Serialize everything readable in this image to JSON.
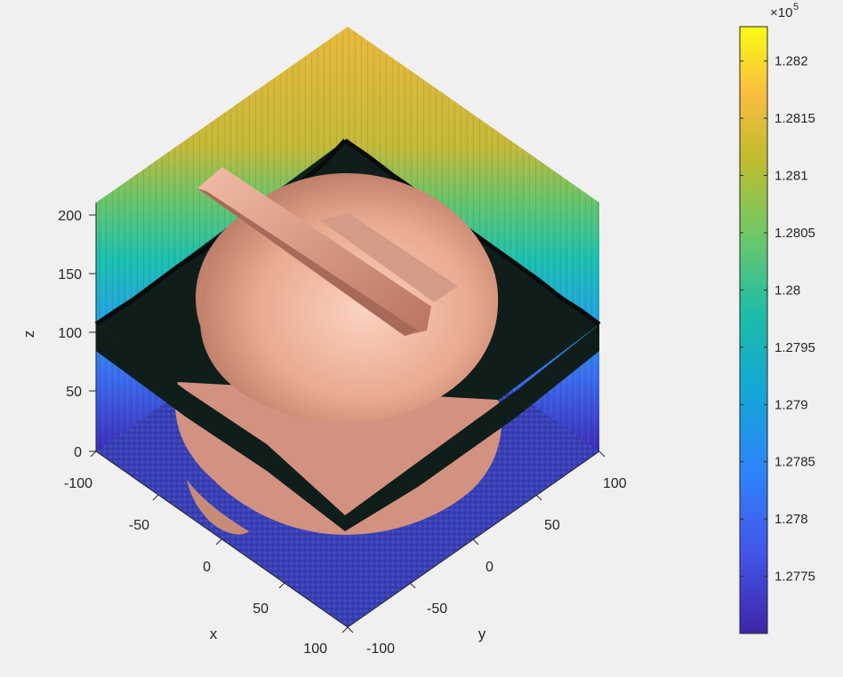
{
  "chart_data": {
    "type": "surface3d",
    "title": "",
    "xlabel": "x",
    "ylabel": "y",
    "zlabel": "z",
    "view": "isometric",
    "xlim": [
      -100,
      100
    ],
    "ylim": [
      -100,
      100
    ],
    "zlim": [
      0,
      210
    ],
    "x_ticks": [
      "-100",
      "-50",
      "0",
      "50",
      "100"
    ],
    "y_ticks": [
      "100",
      "50",
      "0",
      "-50",
      "-100"
    ],
    "z_ticks": [
      "0",
      "50",
      "100",
      "150",
      "200"
    ],
    "colorbar": {
      "colormap": "parula",
      "exponent_label": "×10",
      "exponent": "5",
      "range": [
        1.277,
        1.2823
      ],
      "ticks": [
        "1.282",
        "1.2815",
        "1.281",
        "1.2805",
        "1.28",
        "1.2795",
        "1.279",
        "1.2785",
        "1.278",
        "1.2775"
      ],
      "tick_values": [
        1.282,
        1.2815,
        1.281,
        1.2805,
        1.28,
        1.2795,
        1.279,
        1.2785,
        1.278,
        1.2775
      ]
    },
    "elements": [
      {
        "name": "noise-floor-plane",
        "kind": "surface",
        "z": 0,
        "color": "#3a3fb8"
      },
      {
        "name": "noise-surface-z100",
        "kind": "surface",
        "z": 100,
        "color": "#0e1a18"
      },
      {
        "name": "back-wall-gradient",
        "kind": "surface",
        "z_range": [
          0,
          210
        ]
      },
      {
        "name": "head-isosurface",
        "kind": "isosurface",
        "color": "#e8a890"
      }
    ]
  }
}
